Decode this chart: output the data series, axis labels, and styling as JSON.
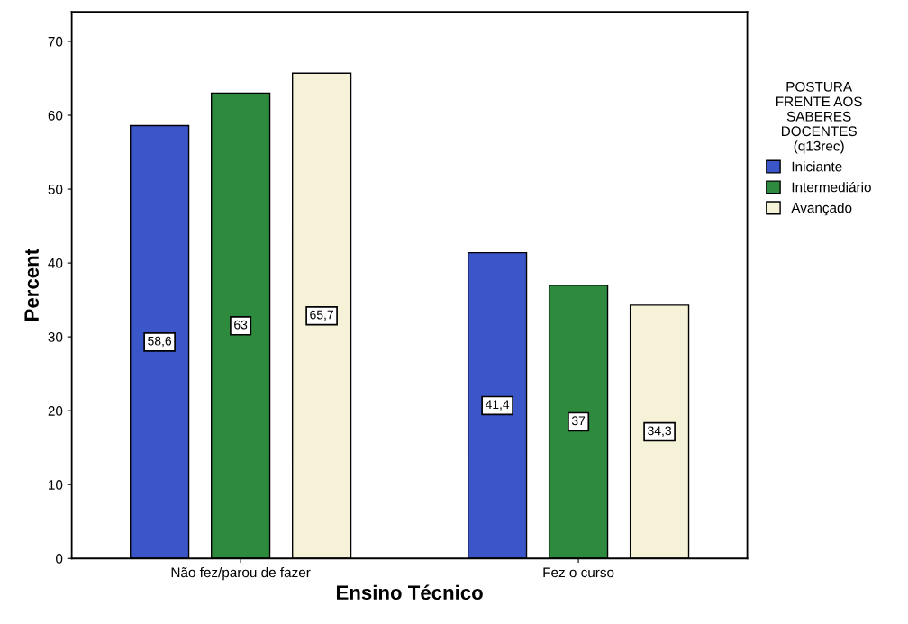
{
  "chart_data": {
    "type": "bar",
    "xlabel": "Ensino Técnico",
    "ylabel": "Percent",
    "legend_title": "POSTURA\nFRENTE AOS\nSABERES\nDOCENTES\n(q13rec)",
    "categories": [
      "Não fez/parou de fazer",
      "Fez o curso"
    ],
    "series": [
      {
        "name": "Iniciante",
        "color": "#3a56c8",
        "values": [
          58.6,
          41.4
        ],
        "value_labels": [
          "58,6",
          "41,4"
        ]
      },
      {
        "name": "Intermediário",
        "color": "#2e8b3e",
        "values": [
          63,
          37
        ],
        "value_labels": [
          "63",
          "37"
        ]
      },
      {
        "name": "Avançado",
        "color": "#f5f2d8",
        "values": [
          65.7,
          34.3
        ],
        "value_labels": [
          "65,7",
          "34,3"
        ]
      }
    ],
    "ylim": [
      0,
      74
    ],
    "yticks": [
      0,
      10,
      20,
      30,
      40,
      50,
      60,
      70
    ],
    "grid": false,
    "legend": "right"
  }
}
